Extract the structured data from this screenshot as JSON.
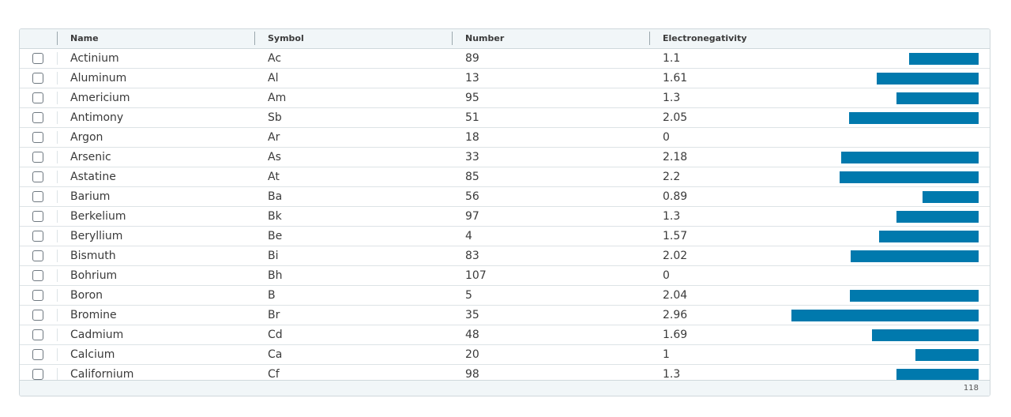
{
  "columns": {
    "name": "Name",
    "symbol": "Symbol",
    "number": "Number",
    "electronegativity": "Electronegativity"
  },
  "rows": [
    {
      "name": "Actinium",
      "symbol": "Ac",
      "number": "89",
      "electronegativity": "1.1"
    },
    {
      "name": "Aluminum",
      "symbol": "Al",
      "number": "13",
      "electronegativity": "1.61"
    },
    {
      "name": "Americium",
      "symbol": "Am",
      "number": "95",
      "electronegativity": "1.3"
    },
    {
      "name": "Antimony",
      "symbol": "Sb",
      "number": "51",
      "electronegativity": "2.05"
    },
    {
      "name": "Argon",
      "symbol": "Ar",
      "number": "18",
      "electronegativity": "0"
    },
    {
      "name": "Arsenic",
      "symbol": "As",
      "number": "33",
      "electronegativity": "2.18"
    },
    {
      "name": "Astatine",
      "symbol": "At",
      "number": "85",
      "electronegativity": "2.2"
    },
    {
      "name": "Barium",
      "symbol": "Ba",
      "number": "56",
      "electronegativity": "0.89"
    },
    {
      "name": "Berkelium",
      "symbol": "Bk",
      "number": "97",
      "electronegativity": "1.3"
    },
    {
      "name": "Beryllium",
      "symbol": "Be",
      "number": "4",
      "electronegativity": "1.57"
    },
    {
      "name": "Bismuth",
      "symbol": "Bi",
      "number": "83",
      "electronegativity": "2.02"
    },
    {
      "name": "Bohrium",
      "symbol": "Bh",
      "number": "107",
      "electronegativity": "0"
    },
    {
      "name": "Boron",
      "symbol": "B",
      "number": "5",
      "electronegativity": "2.04"
    },
    {
      "name": "Bromine",
      "symbol": "Br",
      "number": "35",
      "electronegativity": "2.96"
    },
    {
      "name": "Cadmium",
      "symbol": "Cd",
      "number": "48",
      "electronegativity": "1.69"
    },
    {
      "name": "Calcium",
      "symbol": "Ca",
      "number": "20",
      "electronegativity": "1"
    },
    {
      "name": "Californium",
      "symbol": "Cf",
      "number": "98",
      "electronegativity": "1.3"
    }
  ],
  "footer": {
    "total": "118"
  },
  "colors": {
    "bar": "#0079ad"
  }
}
